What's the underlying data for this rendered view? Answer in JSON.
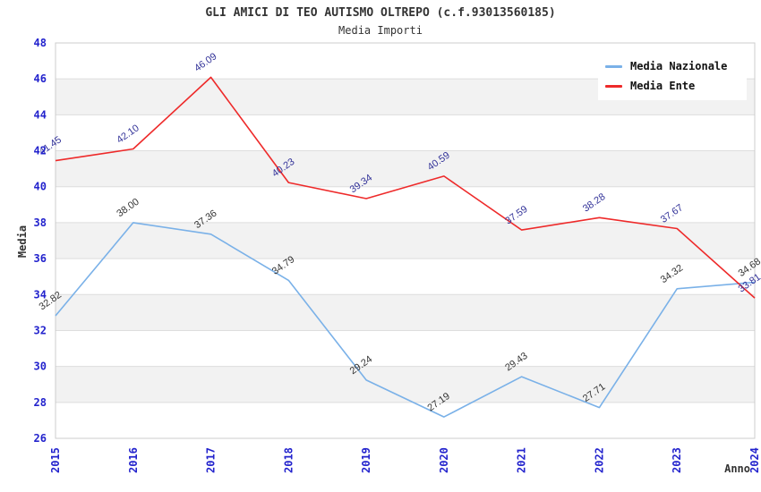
{
  "chart_data": {
    "type": "line",
    "title": "GLI AMICI DI TEO AUTISMO OLTREPO (c.f.93013560185)",
    "subtitle": "Media Importi",
    "xlabel": "Anno",
    "ylabel": "Media",
    "categories": [
      "2015",
      "2016",
      "2017",
      "2018",
      "2019",
      "2020",
      "2021",
      "2022",
      "2023",
      "2024"
    ],
    "series": [
      {
        "name": "Media Nazionale",
        "color": "#7ab1e8",
        "label_color": "#333333",
        "values": [
          32.82,
          38.0,
          37.36,
          34.79,
          29.24,
          27.19,
          29.43,
          27.71,
          34.32,
          34.68
        ]
      },
      {
        "name": "Media Ente",
        "color": "#ee2a2a",
        "label_color": "#333399",
        "values": [
          41.45,
          42.1,
          46.09,
          40.23,
          39.34,
          40.59,
          37.59,
          38.28,
          37.67,
          33.81
        ]
      }
    ],
    "ylim": [
      26,
      48
    ],
    "ytick_step": 2,
    "grid": "alternating-horizontal-bands",
    "legend_position": "top-right",
    "colors": {
      "tick_label": "#2323cd",
      "band": "#f2f2f2",
      "grid_line": "#dddddd",
      "plot_border": "#cccccc",
      "axis_title": "#333333",
      "title": "#333333",
      "background": "#ffffff"
    }
  }
}
